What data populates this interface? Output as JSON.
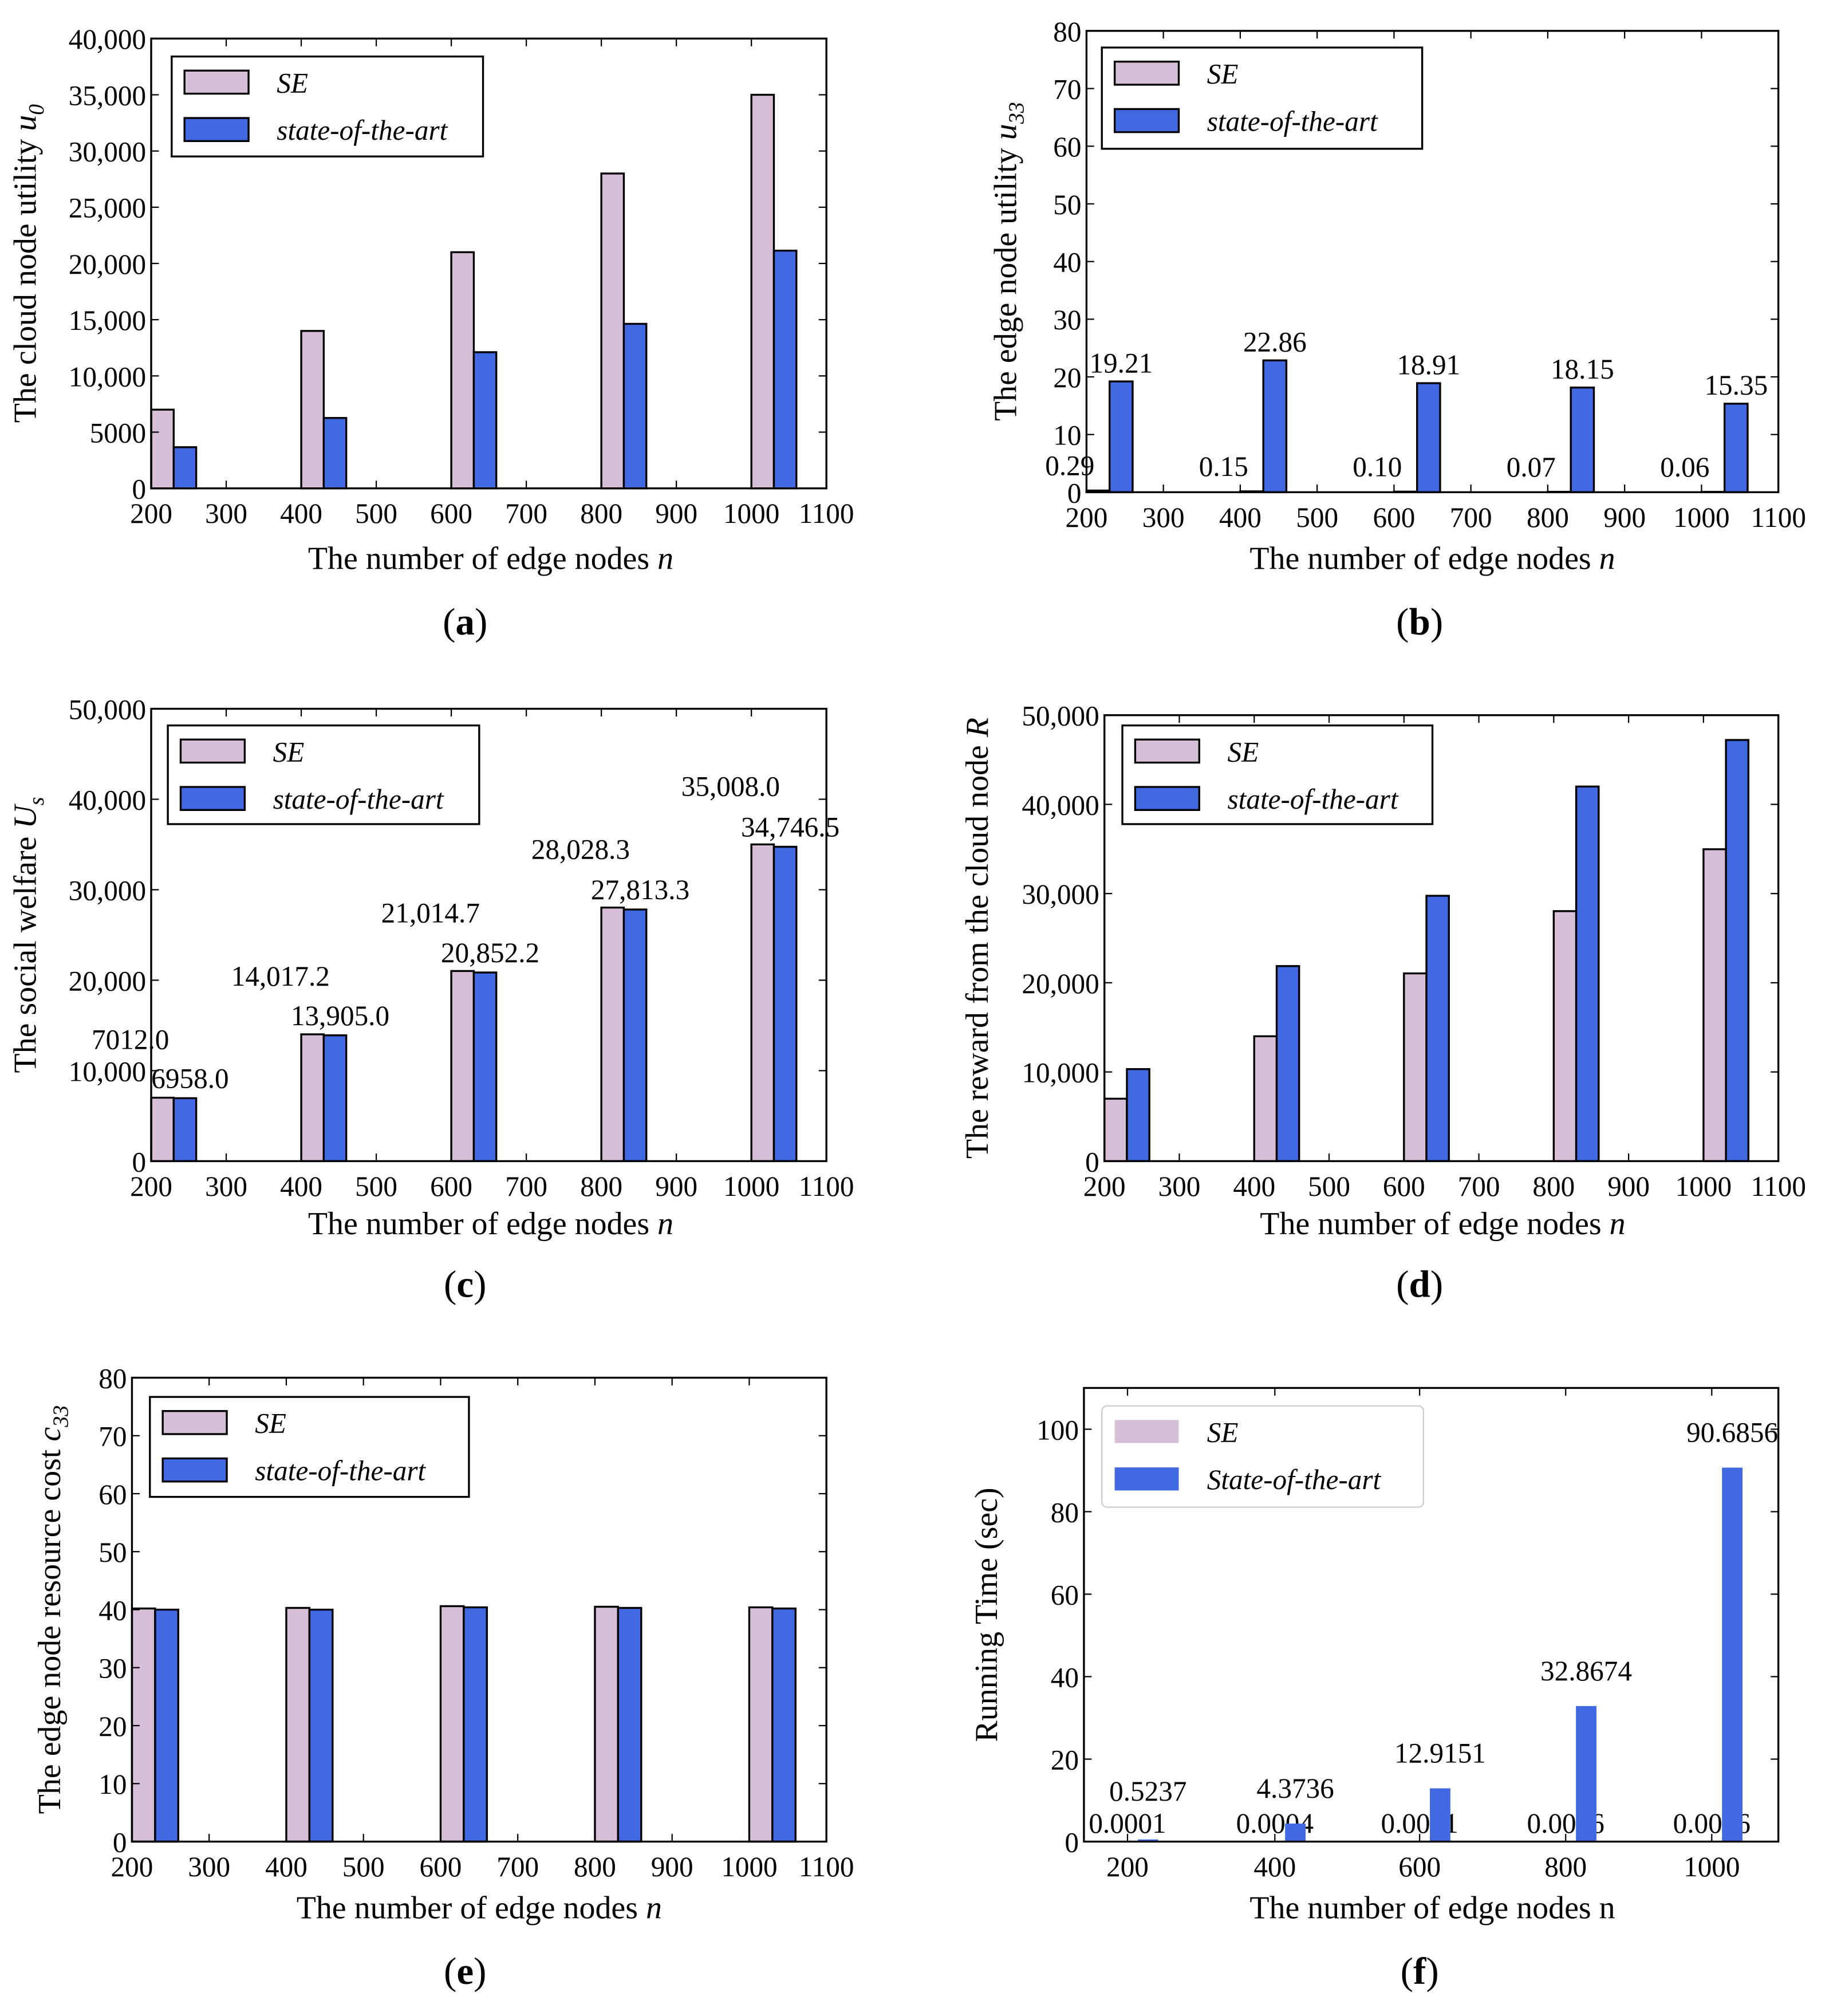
{
  "chart_data": [
    {
      "id": "a",
      "caption_letter": "a",
      "type": "bar",
      "x": [
        200,
        400,
        600,
        800,
        1000
      ],
      "xlim": [
        200,
        1100
      ],
      "xticks": [
        200,
        300,
        400,
        500,
        600,
        700,
        800,
        900,
        1000,
        1100
      ],
      "xtick_labels": [
        "200",
        "300",
        "400",
        "500",
        "600",
        "700",
        "800",
        "900",
        "1000",
        "1100"
      ],
      "ylim": [
        0,
        40000
      ],
      "yticks": [
        0,
        5000,
        10000,
        15000,
        20000,
        25000,
        30000,
        35000,
        40000
      ],
      "ytick_labels": [
        "0",
        "5000",
        "10,000",
        "15,000",
        "20,000",
        "25,000",
        "30,000",
        "35,000",
        "40,000"
      ],
      "xlabel": {
        "text": "The number of edge nodes ",
        "var": "n",
        "sub": ""
      },
      "ylabel": {
        "text": "The cloud node utility ",
        "var": "u",
        "sub": "0"
      },
      "legend": "top-left",
      "series": [
        {
          "name": "SE",
          "color": "#d8bfd8",
          "values": [
            7000,
            14000,
            21000,
            28000,
            35000
          ]
        },
        {
          "name": "state-of-the-art",
          "color": "#4169e1",
          "values": [
            3660,
            6260,
            12110,
            14630,
            21140
          ]
        }
      ]
    },
    {
      "id": "b",
      "caption_letter": "b",
      "type": "bar",
      "x": [
        200,
        400,
        600,
        800,
        1000
      ],
      "xlim": [
        200,
        1100
      ],
      "xticks": [
        200,
        300,
        400,
        500,
        600,
        700,
        800,
        900,
        1000,
        1100
      ],
      "xtick_labels": [
        "200",
        "300",
        "400",
        "500",
        "600",
        "700",
        "800",
        "900",
        "1000",
        "1100"
      ],
      "ylim": [
        0,
        80
      ],
      "yticks": [
        0,
        10,
        20,
        30,
        40,
        50,
        60,
        70,
        80
      ],
      "ytick_labels": [
        "0",
        "10",
        "20",
        "30",
        "40",
        "50",
        "60",
        "70",
        "80"
      ],
      "xlabel": {
        "text": "The number of edge nodes ",
        "var": "n",
        "sub": ""
      },
      "ylabel": {
        "text": "The edge node utility ",
        "var": "u",
        "sub": "33"
      },
      "legend": "top-left",
      "series": [
        {
          "name": "SE",
          "color": "#d8bfd8",
          "values": [
            0.29,
            0.15,
            0.1,
            0.07,
            0.06
          ],
          "labels": [
            "0.29",
            "0.15",
            "0.10",
            "0.07",
            "0.06"
          ]
        },
        {
          "name": "state-of-the-art",
          "color": "#4169e1",
          "values": [
            19.21,
            22.86,
            18.91,
            18.15,
            15.35
          ],
          "labels": [
            "19.21",
            "22.86",
            "18.91",
            "18.15",
            "15.35"
          ]
        }
      ]
    },
    {
      "id": "c",
      "caption_letter": "c",
      "type": "bar",
      "x": [
        200,
        400,
        600,
        800,
        1000
      ],
      "xlim": [
        200,
        1100
      ],
      "xticks": [
        200,
        300,
        400,
        500,
        600,
        700,
        800,
        900,
        1000,
        1100
      ],
      "xtick_labels": [
        "200",
        "300",
        "400",
        "500",
        "600",
        "700",
        "800",
        "900",
        "1000",
        "1100"
      ],
      "ylim": [
        0,
        50000
      ],
      "yticks": [
        0,
        10000,
        20000,
        30000,
        40000,
        50000
      ],
      "ytick_labels": [
        "0",
        "10,000",
        "20,000",
        "30,000",
        "40,000",
        "50,000"
      ],
      "xlabel": {
        "text": "The number of edge nodes ",
        "var": "n",
        "sub": ""
      },
      "ylabel": {
        "text": "The social welfare ",
        "var": "U",
        "sub": "s"
      },
      "legend": "top-left",
      "series": [
        {
          "name": "SE",
          "color": "#d8bfd8",
          "values": [
            7012.0,
            14017.2,
            21014.7,
            28028.3,
            35008.0
          ],
          "labels": [
            "7012.0",
            "14,017.2",
            "21,014.7",
            "28,028.3",
            "35,008.0"
          ]
        },
        {
          "name": "state-of-the-art",
          "color": "#4169e1",
          "values": [
            6958.0,
            13905.0,
            20852.2,
            27813.3,
            34746.5
          ],
          "labels": [
            "6958.0",
            "13,905.0",
            "20,852.2",
            "27,813.3",
            "34,746.5"
          ]
        }
      ]
    },
    {
      "id": "d",
      "caption_letter": "d",
      "type": "bar",
      "x": [
        200,
        400,
        600,
        800,
        1000
      ],
      "xlim": [
        200,
        1100
      ],
      "xticks": [
        200,
        300,
        400,
        500,
        600,
        700,
        800,
        900,
        1000,
        1100
      ],
      "xtick_labels": [
        "200",
        "300",
        "400",
        "500",
        "600",
        "700",
        "800",
        "900",
        "1000",
        "1100"
      ],
      "ylim": [
        0,
        50000
      ],
      "yticks": [
        0,
        10000,
        20000,
        30000,
        40000,
        50000
      ],
      "ytick_labels": [
        "0",
        "10,000",
        "20,000",
        "30,000",
        "40,000",
        "50,000"
      ],
      "xlabel": {
        "text": "The number of edge nodes ",
        "var": "n",
        "sub": ""
      },
      "ylabel": {
        "text": "The reward from the cloud node ",
        "var": "R",
        "sub": ""
      },
      "legend": "top-left",
      "series": [
        {
          "name": "SE",
          "color": "#d8bfd8",
          "values": [
            7000,
            14000,
            21050,
            28030,
            34970
          ]
        },
        {
          "name": "state-of-the-art",
          "color": "#4169e1",
          "values": [
            10320,
            21870,
            29750,
            42000,
            47220
          ]
        }
      ]
    },
    {
      "id": "e",
      "caption_letter": "e",
      "type": "bar",
      "x": [
        200,
        400,
        600,
        800,
        1000
      ],
      "xlim": [
        200,
        1100
      ],
      "xticks": [
        200,
        300,
        400,
        500,
        600,
        700,
        800,
        900,
        1000,
        1100
      ],
      "xtick_labels": [
        "200",
        "300",
        "400",
        "500",
        "600",
        "700",
        "800",
        "900",
        "1000",
        "1100"
      ],
      "ylim": [
        0,
        80
      ],
      "yticks": [
        0,
        10,
        20,
        30,
        40,
        50,
        60,
        70,
        80
      ],
      "ytick_labels": [
        "0",
        "10",
        "20",
        "30",
        "40",
        "50",
        "60",
        "70",
        "80"
      ],
      "xlabel": {
        "text": "The number of edge nodes ",
        "var": "n",
        "sub": ""
      },
      "ylabel": {
        "text": "The edge node resource cost ",
        "var": "c",
        "sub": "33"
      },
      "legend": "top-left",
      "series": [
        {
          "name": "SE",
          "color": "#d8bfd8",
          "values": [
            40.2,
            40.3,
            40.6,
            40.5,
            40.4
          ]
        },
        {
          "name": "state-of-the-art",
          "color": "#4169e1",
          "values": [
            40.0,
            40.0,
            40.4,
            40.3,
            40.2
          ]
        }
      ]
    },
    {
      "id": "f",
      "caption_letter": "f",
      "type": "bar",
      "categories": [
        "200",
        "400",
        "600",
        "800",
        "1000"
      ],
      "ylim": [
        0,
        110
      ],
      "yticks": [
        0,
        20,
        40,
        60,
        80,
        100
      ],
      "ytick_labels": [
        "0",
        "20",
        "40",
        "60",
        "80",
        "100"
      ],
      "xlabel": {
        "text": "The number of edge nodes n",
        "var": "",
        "sub": ""
      },
      "ylabel": {
        "text": "Running Time (sec)",
        "var": "",
        "sub": ""
      },
      "legend": "top-left",
      "series": [
        {
          "name": "SE",
          "color": "#d8bfd8",
          "values": [
            0.0001,
            0.0004,
            0.0021,
            0.0036,
            0.0056
          ],
          "labels": [
            "0.0001",
            "0.0004",
            "0.0021",
            "0.0036",
            "0.0056"
          ]
        },
        {
          "name": "State-of-the-art",
          "color": "#4169e1",
          "values": [
            0.5237,
            4.3736,
            12.9151,
            32.8674,
            90.6856
          ],
          "labels": [
            "0.5237",
            "4.3736",
            "12.9151",
            "32.8674",
            "90.6856"
          ]
        }
      ]
    }
  ]
}
